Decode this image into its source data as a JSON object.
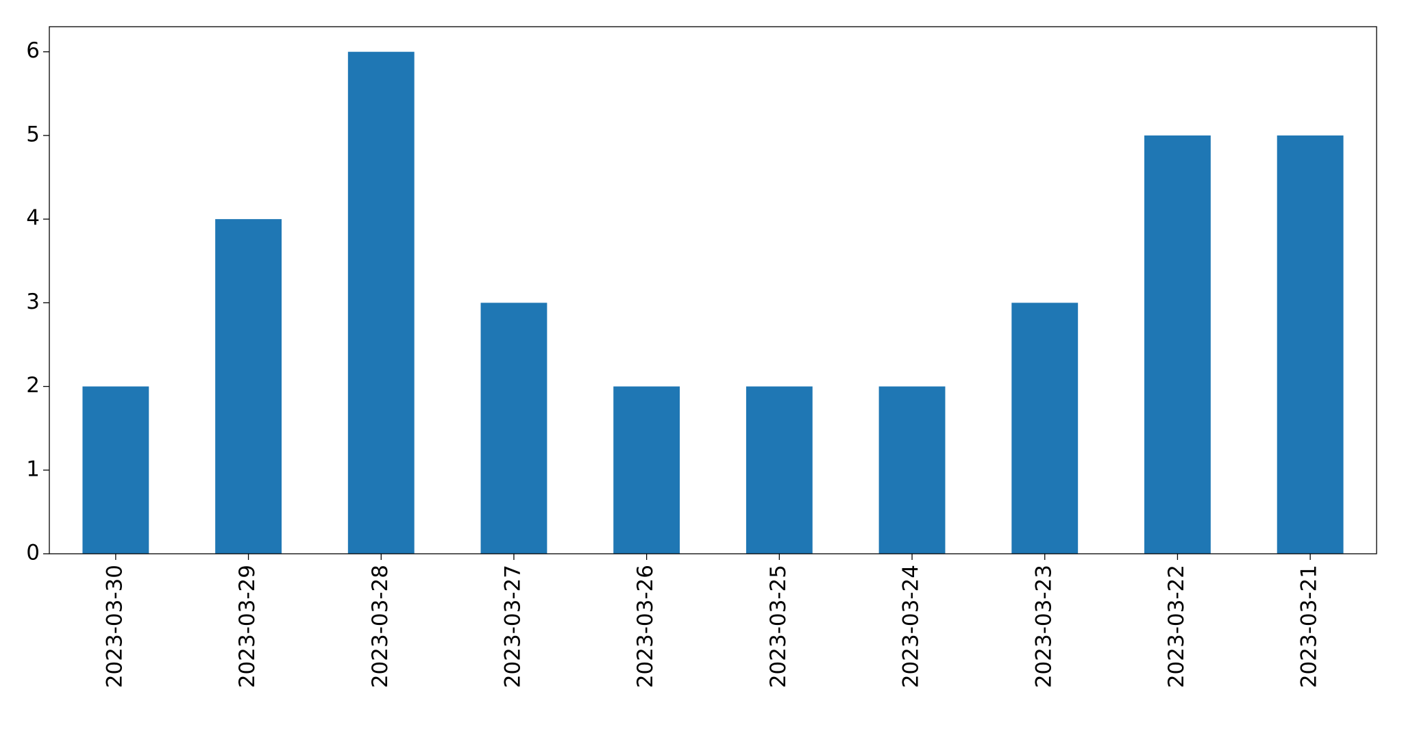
{
  "chart_data": {
    "type": "bar",
    "categories": [
      "2023-03-30",
      "2023-03-29",
      "2023-03-28",
      "2023-03-27",
      "2023-03-26",
      "2023-03-25",
      "2023-03-24",
      "2023-03-23",
      "2023-03-22",
      "2023-03-21"
    ],
    "values": [
      2,
      4,
      6,
      3,
      2,
      2,
      2,
      3,
      5,
      5
    ],
    "color": "#1f77b4",
    "ylim": [
      0,
      6.3
    ],
    "yticks": [
      0,
      1,
      2,
      3,
      4,
      5,
      6
    ],
    "grid": false
  }
}
